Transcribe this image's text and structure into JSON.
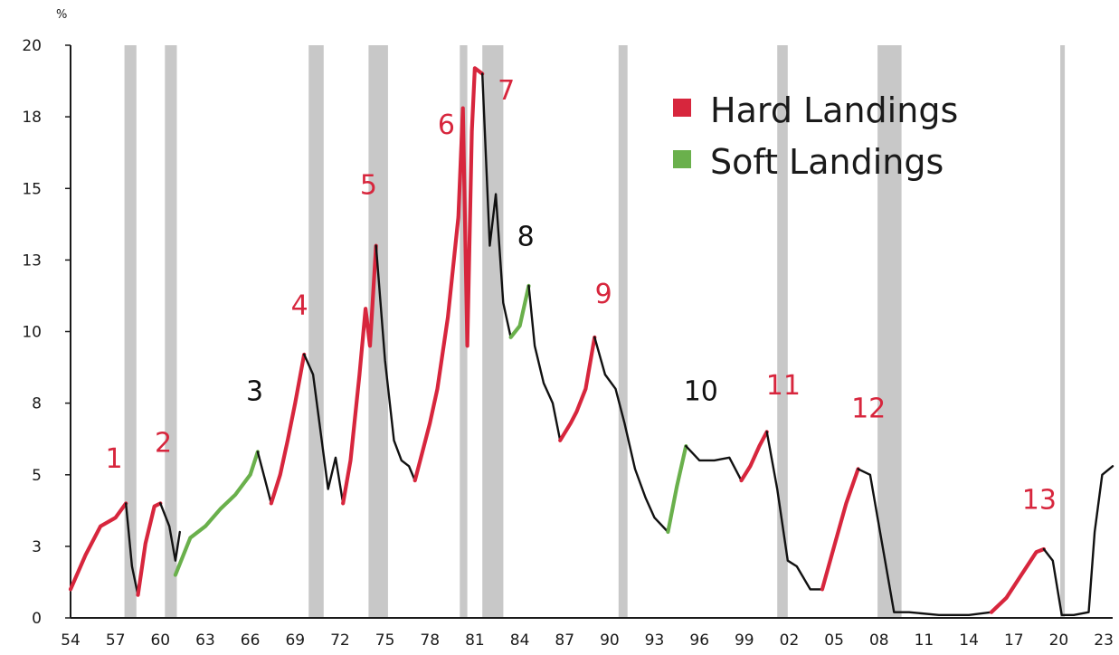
{
  "chart_data": {
    "type": "line",
    "ylabel": "%",
    "xlim": [
      1954,
      2023.6
    ],
    "ylim": [
      0,
      20
    ],
    "y_ticks": [
      "0",
      "3",
      "5",
      "8",
      "10",
      "13",
      "15",
      "18",
      "20"
    ],
    "x_ticks": [
      "54",
      "57",
      "60",
      "63",
      "66",
      "69",
      "72",
      "75",
      "78",
      "81",
      "84",
      "87",
      "90",
      "93",
      "96",
      "99",
      "02",
      "05",
      "08",
      "11",
      "14",
      "17",
      "20",
      "23"
    ],
    "recessions": [
      [
        1957.6,
        1958.4
      ],
      [
        1960.3,
        1961.1
      ],
      [
        1969.9,
        1970.9
      ],
      [
        1973.9,
        1975.2
      ],
      [
        1980.0,
        1980.5
      ],
      [
        1981.5,
        1982.9
      ],
      [
        1990.6,
        1991.2
      ],
      [
        2001.2,
        2001.9
      ],
      [
        2007.9,
        2009.5
      ],
      [
        2020.1,
        2020.4
      ]
    ],
    "legend": [
      {
        "label": "Hard Landings",
        "color": "#d7263d"
      },
      {
        "label": "Soft Landings",
        "color": "#6ab04c"
      }
    ],
    "colors": {
      "hard": "#d7263d",
      "soft": "#6ab04c",
      "neutral": "#111111",
      "recession": "#c8c8c8"
    },
    "series": [
      {
        "kind": "hard",
        "x": [
          1954.0,
          1955.0,
          1956.0,
          1957.0,
          1957.7
        ],
        "y": [
          1.0,
          2.2,
          3.2,
          3.5,
          4.0
        ]
      },
      {
        "kind": "neutral",
        "x": [
          1957.7,
          1958.1,
          1958.5
        ],
        "y": [
          4.0,
          1.8,
          0.8
        ]
      },
      {
        "kind": "hard",
        "x": [
          1958.5,
          1959.0,
          1959.6,
          1960.0
        ],
        "y": [
          0.8,
          2.6,
          3.9,
          4.0
        ]
      },
      {
        "kind": "neutral",
        "x": [
          1960.0,
          1960.6,
          1961.0,
          1961.3
        ],
        "y": [
          4.0,
          3.2,
          2.0,
          3.0
        ]
      },
      {
        "kind": "soft",
        "x": [
          1961.0,
          1962.0,
          1963.0,
          1964.0,
          1965.0,
          1966.0,
          1966.5
        ],
        "y": [
          1.5,
          2.8,
          3.2,
          3.8,
          4.3,
          5.0,
          5.8
        ]
      },
      {
        "kind": "neutral",
        "x": [
          1966.5,
          1967.0,
          1967.4
        ],
        "y": [
          5.8,
          4.8,
          4.0
        ]
      },
      {
        "kind": "hard",
        "x": [
          1967.4,
          1968.0,
          1968.5,
          1969.0,
          1969.6
        ],
        "y": [
          4.0,
          5.0,
          6.2,
          7.5,
          9.2
        ]
      },
      {
        "kind": "neutral",
        "x": [
          1969.6,
          1970.2,
          1970.7,
          1971.2,
          1971.7,
          1972.2
        ],
        "y": [
          9.2,
          8.5,
          6.5,
          4.5,
          5.6,
          4.0
        ]
      },
      {
        "kind": "hard",
        "x": [
          1972.2,
          1972.7,
          1973.3,
          1973.7,
          1974.0,
          1974.4
        ],
        "y": [
          4.0,
          5.5,
          8.5,
          10.8,
          9.5,
          13.0
        ]
      },
      {
        "kind": "neutral",
        "x": [
          1974.4,
          1975.0,
          1975.6,
          1976.1,
          1976.6,
          1977.0
        ],
        "y": [
          13.0,
          9.0,
          6.2,
          5.5,
          5.3,
          4.8
        ]
      },
      {
        "kind": "hard",
        "x": [
          1977.0,
          1977.5,
          1978.0,
          1978.5,
          1979.2,
          1979.9,
          1980.2,
          1980.5,
          1980.8,
          1981.0,
          1981.5
        ],
        "y": [
          4.8,
          5.8,
          6.8,
          8.0,
          10.5,
          14.0,
          17.8,
          9.5,
          17.0,
          19.2,
          19.0
        ]
      },
      {
        "kind": "neutral",
        "x": [
          1981.5,
          1982.0,
          1982.4,
          1982.9,
          1983.4
        ],
        "y": [
          19.0,
          13.0,
          14.8,
          11.0,
          9.8
        ]
      },
      {
        "kind": "soft",
        "x": [
          1983.4,
          1984.0,
          1984.6
        ],
        "y": [
          9.8,
          10.2,
          11.6
        ]
      },
      {
        "kind": "neutral",
        "x": [
          1984.6,
          1985.0,
          1985.6,
          1986.2,
          1986.7
        ],
        "y": [
          11.6,
          9.5,
          8.2,
          7.5,
          6.2
        ]
      },
      {
        "kind": "hard",
        "x": [
          1986.7,
          1987.4,
          1987.8,
          1988.4,
          1989.0
        ],
        "y": [
          6.2,
          6.8,
          7.2,
          8.0,
          9.8
        ]
      },
      {
        "kind": "neutral",
        "x": [
          1989.0,
          1989.7,
          1990.4,
          1991.0,
          1991.7,
          1992.4,
          1993.0,
          1993.9
        ],
        "y": [
          9.8,
          8.5,
          8.0,
          6.8,
          5.2,
          4.2,
          3.5,
          3.0
        ]
      },
      {
        "kind": "soft",
        "x": [
          1993.9,
          1994.5,
          1995.1
        ],
        "y": [
          3.0,
          4.6,
          6.0
        ]
      },
      {
        "kind": "neutral",
        "x": [
          1995.1,
          1996.0,
          1997.0,
          1998.0,
          1998.8
        ],
        "y": [
          6.0,
          5.5,
          5.5,
          5.6,
          4.8
        ]
      },
      {
        "kind": "hard",
        "x": [
          1998.8,
          1999.4,
          2000.0,
          2000.5
        ],
        "y": [
          4.8,
          5.3,
          6.0,
          6.5
        ]
      },
      {
        "kind": "neutral",
        "x": [
          2000.5,
          2001.2,
          2001.9,
          2002.5,
          2003.4,
          2004.2
        ],
        "y": [
          6.5,
          4.5,
          2.0,
          1.8,
          1.0,
          1.0
        ]
      },
      {
        "kind": "hard",
        "x": [
          2004.2,
          2005.0,
          2005.8,
          2006.6
        ],
        "y": [
          1.0,
          2.5,
          4.0,
          5.2
        ]
      },
      {
        "kind": "neutral",
        "x": [
          2006.6,
          2007.4,
          2007.9,
          2008.4,
          2009.0,
          2010.0,
          2012.0,
          2014.0,
          2015.5
        ],
        "y": [
          5.2,
          5.0,
          3.5,
          2.0,
          0.2,
          0.2,
          0.1,
          0.1,
          0.2
        ]
      },
      {
        "kind": "hard",
        "x": [
          2015.5,
          2016.5,
          2017.5,
          2018.5,
          2019.0
        ],
        "y": [
          0.2,
          0.7,
          1.5,
          2.3,
          2.4
        ]
      },
      {
        "kind": "neutral",
        "x": [
          2019.0,
          2019.6,
          2020.2,
          2021.0,
          2022.0,
          2022.4,
          2022.9,
          2023.6
        ],
        "y": [
          2.4,
          2.0,
          0.1,
          0.1,
          0.2,
          3.0,
          5.0,
          5.3
        ]
      }
    ],
    "annotations": [
      {
        "text": "1",
        "x": 1956.9,
        "y": 5.25,
        "kind": "hard"
      },
      {
        "text": "2",
        "x": 1960.2,
        "y": 5.8,
        "kind": "hard"
      },
      {
        "text": "3",
        "x": 1966.3,
        "y": 7.6,
        "kind": "neutral"
      },
      {
        "text": "4",
        "x": 1969.3,
        "y": 10.6,
        "kind": "hard"
      },
      {
        "text": "5",
        "x": 1973.9,
        "y": 14.8,
        "kind": "hard"
      },
      {
        "text": "6",
        "x": 1979.1,
        "y": 16.9,
        "kind": "hard"
      },
      {
        "text": "7",
        "x": 1983.1,
        "y": 18.1,
        "kind": "hard"
      },
      {
        "text": "8",
        "x": 1984.4,
        "y": 13.0,
        "kind": "neutral"
      },
      {
        "text": "9",
        "x": 1989.6,
        "y": 11.0,
        "kind": "hard"
      },
      {
        "text": "10",
        "x": 1996.1,
        "y": 7.6,
        "kind": "neutral"
      },
      {
        "text": "11",
        "x": 2001.6,
        "y": 7.8,
        "kind": "hard"
      },
      {
        "text": "12",
        "x": 2007.3,
        "y": 7.0,
        "kind": "hard"
      },
      {
        "text": "13",
        "x": 2018.7,
        "y": 3.8,
        "kind": "hard"
      }
    ]
  }
}
